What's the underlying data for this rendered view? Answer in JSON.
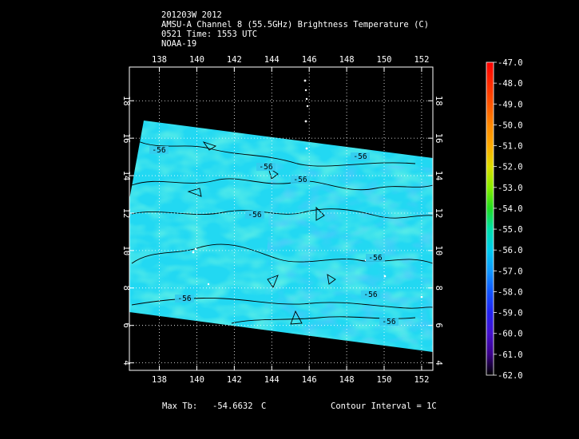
{
  "header": {
    "line1": "201203W 2012",
    "line2": "AMSU-A Channel 8 (55.5GHz) Brightness Temperature (C)",
    "line3": "0521 Time: 1553 UTC",
    "line4": "NOAA-19"
  },
  "map": {
    "lon_ticks": [
      "138",
      "140",
      "142",
      "144",
      "146",
      "148",
      "150",
      "152"
    ],
    "lat_ticks": [
      "18",
      "16",
      "14",
      "12",
      "10",
      "8",
      "6",
      "4"
    ],
    "lon_range": [
      136.4,
      152.6
    ],
    "lat_range": [
      3.6,
      19.8
    ],
    "contour_labels": [
      "-56",
      "-56",
      "-56",
      "-56",
      "-56",
      "-56",
      "-56",
      "-56",
      "-56"
    ]
  },
  "colorbar": {
    "labels": [
      "-47.0",
      "-48.0",
      "-49.0",
      "-50.0",
      "-51.0",
      "-52.0",
      "-53.0",
      "-54.0",
      "-55.0",
      "-56.0",
      "-57.0",
      "-58.0",
      "-59.0",
      "-60.0",
      "-61.0",
      "-62.0"
    ],
    "colors": [
      "#ff0000",
      "#ff2a00",
      "#ff5500",
      "#ff8800",
      "#ffaa00",
      "#dddd00",
      "#88ee00",
      "#22dd22",
      "#00e0aa",
      "#00ccee",
      "#1199ff",
      "#1155ff",
      "#2222ee",
      "#4411cc",
      "#3a0088",
      "#000000"
    ]
  },
  "footer": {
    "max_label": "Max Tb:",
    "max_value": "-54.6632",
    "max_unit": "C",
    "contour": "Contour Interval = 1C"
  }
}
